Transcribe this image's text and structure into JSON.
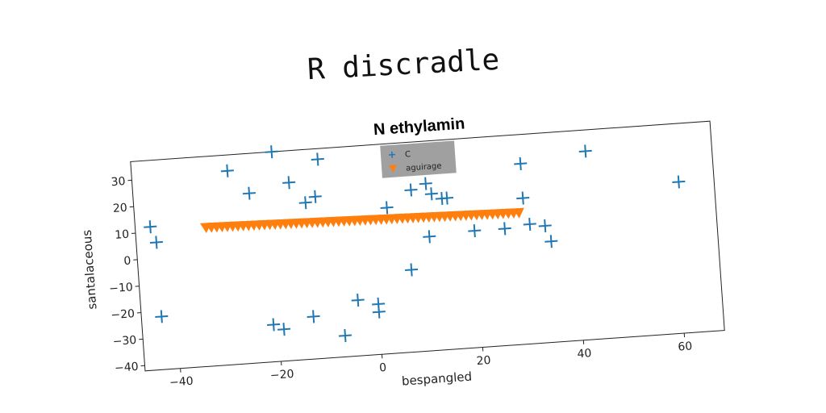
{
  "super_title": "R discradle",
  "chart_data": {
    "type": "scatter",
    "title": "N ethylamin",
    "xlabel": "bespangled",
    "ylabel": "santalaceous",
    "xlim": [
      -47,
      68
    ],
    "ylim": [
      -42,
      37
    ],
    "xticks": [
      -40,
      -20,
      0,
      20,
      40,
      60
    ],
    "yticks": [
      -40,
      -30,
      -20,
      -10,
      0,
      10,
      20,
      30
    ],
    "xtick_labels": [
      "−40",
      "−20",
      "0",
      "20",
      "40",
      "60"
    ],
    "ytick_labels": [
      "−40",
      "−30",
      "−20",
      "−10",
      "0",
      "10",
      "20",
      "30"
    ],
    "legend": {
      "position": "top-center"
    },
    "colors": {
      "series_0": "#1f77b4",
      "series_1": "#ff7f0e",
      "legend_bg": "#a0a0a0"
    },
    "series": [
      {
        "name": "C",
        "marker": "plus",
        "points": [
          [
            -44,
            12
          ],
          [
            -43,
            6
          ],
          [
            -43,
            -22
          ],
          [
            -28,
            31
          ],
          [
            -24,
            22
          ],
          [
            -19,
            37
          ],
          [
            -16,
            25
          ],
          [
            -13,
            17
          ],
          [
            -11,
            19
          ],
          [
            -10,
            33
          ],
          [
            -21,
            -28
          ],
          [
            -19,
            -30
          ],
          [
            -13,
            -26
          ],
          [
            -7,
            -34
          ],
          [
            -4,
            -21
          ],
          [
            0,
            -23
          ],
          [
            0,
            -26
          ],
          [
            3,
            13
          ],
          [
            7,
            -11
          ],
          [
            8,
            19
          ],
          [
            11,
            1
          ],
          [
            11,
            21
          ],
          [
            12,
            17
          ],
          [
            14,
            15
          ],
          [
            15,
            15
          ],
          [
            15,
            30
          ],
          [
            20,
            2
          ],
          [
            26,
            2
          ],
          [
            30,
            26
          ],
          [
            30,
            13
          ],
          [
            31,
            3
          ],
          [
            34,
            2
          ],
          [
            35,
            -4
          ],
          [
            43,
            29
          ],
          [
            61,
            15
          ]
        ]
      },
      {
        "name": "aguirage",
        "marker": "triangle-down",
        "x_start": -33,
        "x_end": 29,
        "y_start": 10.3,
        "y_end": 7.6,
        "count": 60
      }
    ]
  }
}
